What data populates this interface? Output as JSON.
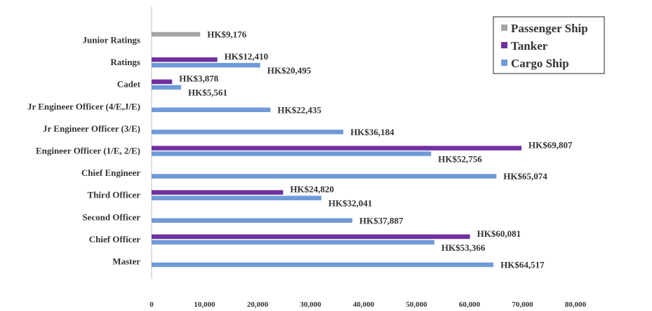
{
  "chart_data": {
    "type": "bar",
    "orientation": "horizontal",
    "title": "",
    "xlabel": "",
    "ylabel": "",
    "xlim": [
      0,
      80000
    ],
    "x_ticks": [
      0,
      10000,
      20000,
      30000,
      40000,
      50000,
      60000,
      70000,
      80000
    ],
    "x_tick_labels": [
      "0",
      "10,000",
      "20,000",
      "30,000",
      "40,000",
      "50,000",
      "60,000",
      "70,000",
      "80,000"
    ],
    "grid": false,
    "legend_position": "top-right",
    "categories": [
      "Master",
      "Chief Officer",
      "Second Officer",
      "Third Officer",
      "Chief Engineer",
      "Engineer Officer (1/E, 2/E)",
      "Jr Engineer Officer (3/E)",
      "Jr Engineer Officer (4/E,J/E)",
      "Cadet",
      "Ratings",
      "Junior Ratings"
    ],
    "series": [
      {
        "name": "Passenger Ship",
        "color": "#a5a5a5",
        "values": [
          null,
          null,
          null,
          null,
          null,
          null,
          null,
          null,
          null,
          null,
          9176
        ],
        "labels": [
          "",
          "",
          "",
          "",
          "",
          "",
          "",
          "",
          "",
          "",
          "HK$9,176"
        ]
      },
      {
        "name": "Tanker",
        "color": "#7030a0",
        "values": [
          null,
          60081,
          null,
          24820,
          null,
          69807,
          null,
          null,
          3878,
          12410,
          null
        ],
        "labels": [
          "",
          "HK$60,081",
          "",
          "HK$24,820",
          "",
          "HK$69,807",
          "",
          "",
          "HK$3,878",
          "HK$12,410",
          ""
        ]
      },
      {
        "name": "Cargo Ship",
        "color": "#6f9ad8",
        "values": [
          64517,
          53366,
          37887,
          32041,
          65074,
          52756,
          36184,
          22435,
          5561,
          20495,
          null
        ],
        "labels": [
          "HK$64,517",
          "HK$53,366",
          "HK$37,887",
          "HK$32,041",
          "HK$65,074",
          "HK$52,756",
          "HK$36,184",
          "HK$22,435",
          "HK$5,561",
          "HK$20,495",
          ""
        ]
      }
    ],
    "legend_entries": [
      "Passenger Ship",
      "Tanker",
      "Cargo Ship"
    ]
  }
}
